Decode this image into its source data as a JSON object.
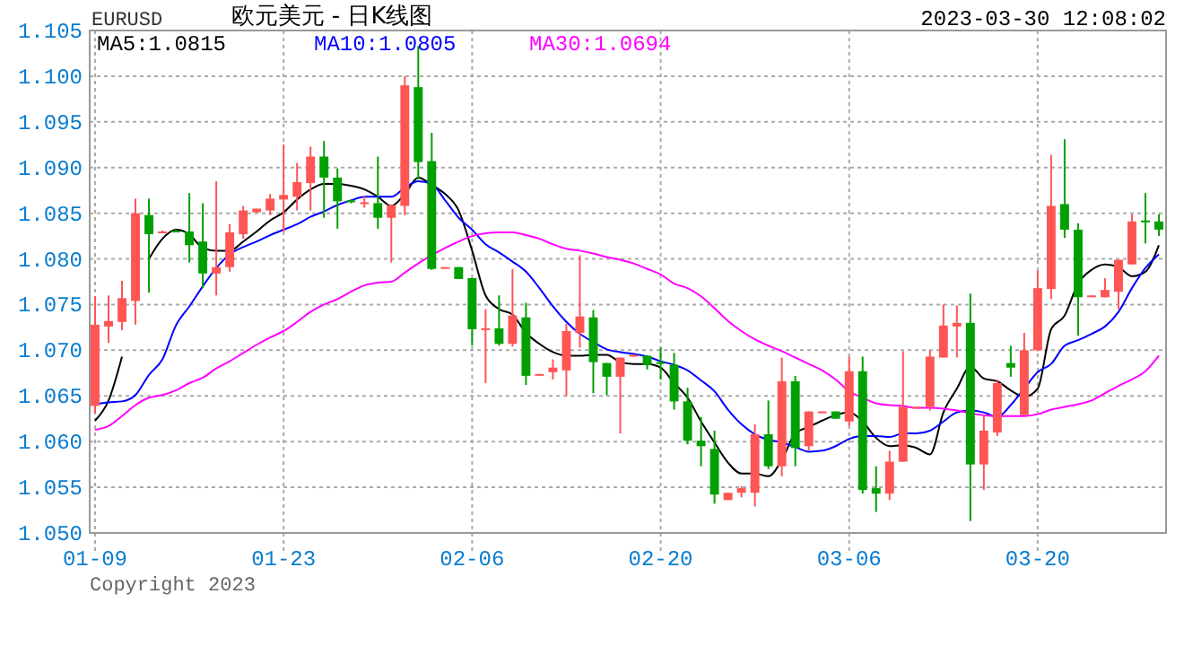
{
  "chart_data": {
    "type": "candlestick",
    "title": "欧元美元 - 日K线图",
    "annotations": [
      "EURUSD",
      "2023-03-30 12:08:02",
      "Copyright 2023"
    ],
    "categories": [
      "01-09",
      null,
      null,
      null,
      null,
      null,
      null,
      null,
      null,
      null,
      null,
      null,
      null,
      null,
      "01-23",
      null,
      null,
      null,
      null,
      null,
      null,
      null,
      null,
      null,
      null,
      null,
      null,
      null,
      "02-06",
      null,
      null,
      null,
      null,
      null,
      null,
      null,
      null,
      null,
      null,
      null,
      null,
      null,
      "02-20",
      null,
      null,
      null,
      null,
      null,
      null,
      null,
      null,
      null,
      null,
      null,
      null,
      null,
      "03-06",
      null,
      null,
      null,
      null,
      null,
      null,
      null,
      null,
      null,
      null,
      null,
      null,
      null,
      "03-20",
      null,
      null,
      null,
      null,
      null,
      null,
      null,
      null,
      null
    ],
    "ohlc": [
      [
        1.0639,
        1.0759,
        1.0631,
        1.0728
      ],
      [
        1.0726,
        1.076,
        1.0708,
        1.0732
      ],
      [
        1.0731,
        1.0776,
        1.0722,
        1.0757
      ],
      [
        1.0754,
        1.0866,
        1.0728,
        1.085
      ],
      [
        1.0848,
        1.0866,
        1.0763,
        1.0827
      ],
      [
        1.0829,
        1.0831,
        1.0828,
        1.083
      ],
      [
        1.0831,
        1.0832,
        1.0829,
        1.0829
      ],
      [
        1.083,
        1.0872,
        1.0796,
        1.0815
      ],
      [
        1.0819,
        1.0861,
        1.0768,
        1.0784
      ],
      [
        1.0784,
        1.0885,
        1.076,
        1.0791
      ],
      [
        1.0791,
        1.0838,
        1.0786,
        1.0829
      ],
      [
        1.0827,
        1.0858,
        1.0822,
        1.0853
      ],
      [
        1.0851,
        1.0855,
        1.0851,
        1.0855
      ],
      [
        1.0853,
        1.0871,
        1.0848,
        1.0866
      ],
      [
        1.0865,
        1.0925,
        1.083,
        1.087
      ],
      [
        1.0868,
        1.0905,
        1.0853,
        1.0884
      ],
      [
        1.0883,
        1.0923,
        1.0853,
        1.0912
      ],
      [
        1.0912,
        1.0929,
        1.0845,
        1.0889
      ],
      [
        1.0889,
        1.0899,
        1.0833,
        1.0863
      ],
      [
        1.0864,
        1.0865,
        1.0861,
        1.0862
      ],
      [
        1.0861,
        1.0869,
        1.0856,
        1.0862
      ],
      [
        1.0861,
        1.0912,
        1.0833,
        1.0845
      ],
      [
        1.0845,
        1.0859,
        1.0796,
        1.0859
      ],
      [
        1.0858,
        1.1,
        1.0848,
        1.099
      ],
      [
        1.0988,
        1.1033,
        1.0887,
        1.0906
      ],
      [
        1.0907,
        1.0938,
        1.0788,
        1.0789
      ],
      [
        1.079,
        1.0791,
        1.079,
        1.0791
      ],
      [
        1.0791,
        1.0791,
        1.0778,
        1.0778
      ],
      [
        1.0779,
        1.0779,
        1.0705,
        1.0723
      ],
      [
        1.0723,
        1.0745,
        1.0664,
        1.0724
      ],
      [
        1.0724,
        1.076,
        1.0705,
        1.0707
      ],
      [
        1.0707,
        1.0789,
        1.0704,
        1.0738
      ],
      [
        1.0736,
        1.0752,
        1.0662,
        1.0672
      ],
      [
        1.0673,
        1.0674,
        1.0673,
        1.0674
      ],
      [
        1.0676,
        1.069,
        1.0668,
        1.0681
      ],
      [
        1.0678,
        1.0729,
        1.065,
        1.0721
      ],
      [
        1.0719,
        1.0804,
        1.0703,
        1.0737
      ],
      [
        1.0736,
        1.0744,
        1.0653,
        1.0687
      ],
      [
        1.0686,
        1.0686,
        1.0651,
        1.0671
      ],
      [
        1.0671,
        1.0692,
        1.0609,
        1.0692
      ],
      [
        1.0693,
        1.0695,
        1.0693,
        1.0695
      ],
      [
        1.0694,
        1.0694,
        1.0679,
        1.0684
      ],
      [
        1.0687,
        1.0703,
        1.0668,
        1.0685
      ],
      [
        1.0684,
        1.0697,
        1.0635,
        1.0644
      ],
      [
        1.0644,
        1.0659,
        1.0597,
        1.0601
      ],
      [
        1.0601,
        1.0627,
        1.0573,
        1.0595
      ],
      [
        1.0592,
        1.0612,
        1.0532,
        1.0542
      ],
      [
        1.0536,
        1.0544,
        1.0536,
        1.0544
      ],
      [
        1.0544,
        1.0551,
        1.0539,
        1.0549
      ],
      [
        1.0544,
        1.0619,
        1.0529,
        1.0608
      ],
      [
        1.0608,
        1.0645,
        1.057,
        1.0573
      ],
      [
        1.0573,
        1.0692,
        1.0562,
        1.0666
      ],
      [
        1.0666,
        1.0672,
        1.0573,
        1.0593
      ],
      [
        1.0595,
        1.0633,
        1.059,
        1.0633
      ],
      [
        1.0632,
        1.0633,
        1.0632,
        1.0633
      ],
      [
        1.0633,
        1.0633,
        1.0625,
        1.0625
      ],
      [
        1.0622,
        1.0693,
        1.0617,
        1.0677
      ],
      [
        1.0677,
        1.0693,
        1.0543,
        1.0547
      ],
      [
        1.0549,
        1.0573,
        1.0523,
        1.0543
      ],
      [
        1.0543,
        1.059,
        1.0536,
        1.0578
      ],
      [
        1.0578,
        1.0699,
        1.0578,
        1.0638
      ],
      [
        1.0637,
        1.0638,
        1.0637,
        1.0638
      ],
      [
        1.0638,
        1.07,
        1.0634,
        1.0693
      ],
      [
        1.0692,
        1.075,
        1.0692,
        1.0727
      ],
      [
        1.0726,
        1.0749,
        1.0692,
        1.073
      ],
      [
        1.073,
        1.0762,
        1.0513,
        1.0575
      ],
      [
        1.0575,
        1.0629,
        1.0547,
        1.0612
      ],
      [
        1.061,
        1.0668,
        1.0606,
        1.0664
      ],
      [
        1.0686,
        1.0705,
        1.0671,
        1.0681
      ],
      [
        1.0629,
        1.0719,
        1.0629,
        1.07
      ],
      [
        1.07,
        1.0787,
        1.0699,
        1.0768
      ],
      [
        1.0767,
        1.0914,
        1.0756,
        1.0858
      ],
      [
        1.086,
        1.0931,
        1.0823,
        1.0832
      ],
      [
        1.0832,
        1.0839,
        1.0716,
        1.0758
      ],
      [
        1.0759,
        1.076,
        1.0759,
        1.076
      ],
      [
        1.0758,
        1.0779,
        1.0758,
        1.0766
      ],
      [
        1.0764,
        1.0799,
        1.0745,
        1.0799
      ],
      [
        1.0794,
        1.0849,
        1.0794,
        1.0841
      ],
      [
        1.0842,
        1.0872,
        1.0817,
        1.084
      ],
      [
        1.0841,
        1.0849,
        1.0825,
        1.0832
      ]
    ],
    "colors": [
      "#ff5555",
      "#ff5555",
      "#ff5555",
      "#ff5555",
      "#00a000",
      "#ff5555",
      "#00a000",
      "#00a000",
      "#00a000",
      "#ff5555",
      "#ff5555",
      "#ff5555",
      "#ff5555",
      "#ff5555",
      "#ff5555",
      "#ff5555",
      "#ff5555",
      "#00a000",
      "#00a000",
      "#00a000",
      "#ff5555",
      "#00a000",
      "#ff5555",
      "#ff5555",
      "#00a000",
      "#00a000",
      "#ff5555",
      "#00a000",
      "#00a000",
      "#ff5555",
      "#00a000",
      "#ff5555",
      "#00a000",
      "#ff5555",
      "#ff5555",
      "#ff5555",
      "#ff5555",
      "#00a000",
      "#00a000",
      "#ff5555",
      "#ff5555",
      "#00a000",
      "#00a000",
      "#00a000",
      "#00a000",
      "#00a000",
      "#00a000",
      "#ff5555",
      "#ff5555",
      "#ff5555",
      "#00a000",
      "#ff5555",
      "#00a000",
      "#ff5555",
      "#ff5555",
      "#00a000",
      "#ff5555",
      "#00a000",
      "#00a000",
      "#ff5555",
      "#ff5555",
      "#ff5555",
      "#ff5555",
      "#ff5555",
      "#ff5555",
      "#00a000",
      "#ff5555",
      "#ff5555",
      "#00a000",
      "#ff5555",
      "#ff5555",
      "#ff5555",
      "#00a000",
      "#00a000",
      "#ff5555",
      "#ff5555",
      "#ff5555",
      "#ff5555",
      "#00a000",
      "#00a000"
    ],
    "series": [
      {
        "type": "line",
        "name": "MA5:1.0815",
        "color": "#000000",
        "values": [
          1.0623,
          1.0645,
          1.0693,
          null,
          1.08,
          1.0822,
          1.0832,
          1.0827,
          1.0812,
          1.0809,
          1.0809,
          1.0819,
          1.083,
          1.0842,
          1.0851,
          1.0865,
          1.0876,
          1.0882,
          1.0882,
          1.088,
          1.0876,
          1.0868,
          1.0858,
          1.0871,
          1.0889,
          1.0881,
          1.0871,
          1.0853,
          1.0809,
          1.076,
          1.0745,
          1.0739,
          1.0719,
          1.0707,
          1.0698,
          1.0694,
          1.0694,
          1.0695,
          1.0695,
          1.0687,
          1.0685,
          1.0685,
          1.0681,
          1.0664,
          1.0648,
          1.0622,
          1.0599,
          1.0577,
          1.0565,
          1.0565,
          1.0562,
          1.058,
          1.0609,
          1.0616,
          1.0623,
          1.0629,
          1.0632,
          1.0622,
          1.0604,
          1.0595,
          1.0596,
          1.0593,
          1.0586,
          1.0632,
          1.0658,
          1.0682,
          1.0669,
          1.0666,
          1.0656,
          1.0649,
          1.0658,
          1.0723,
          1.0738,
          1.0773,
          1.0788,
          1.0794,
          1.0791,
          1.0781,
          1.0786,
          1.0815
        ]
      },
      {
        "type": "line",
        "name": "MA10:1.0805",
        "color": "#0000ff",
        "values": [
          1.0641,
          1.0643,
          1.0644,
          1.0651,
          1.0673,
          1.069,
          1.0727,
          1.0748,
          1.077,
          1.079,
          1.0805,
          1.0813,
          1.0819,
          1.0826,
          1.0832,
          1.0838,
          1.0846,
          1.0852,
          1.0859,
          1.0864,
          1.0868,
          1.0868,
          1.0868,
          1.0878,
          1.0885,
          1.0882,
          1.0864,
          1.0845,
          1.0832,
          1.0816,
          1.0807,
          1.0797,
          1.0786,
          1.0768,
          1.0748,
          1.0731,
          1.0718,
          1.0709,
          1.0701,
          1.0698,
          1.0696,
          1.0693,
          1.0688,
          1.0684,
          1.0678,
          1.0667,
          1.0655,
          1.0635,
          1.0619,
          1.0608,
          1.0602,
          1.0599,
          1.0594,
          1.0589,
          1.059,
          1.0595,
          1.0603,
          1.0606,
          1.0606,
          1.0605,
          1.0609,
          1.0609,
          1.0612,
          1.0622,
          1.0632,
          1.0634,
          1.0632,
          1.0627,
          1.064,
          1.0658,
          1.0676,
          1.0685,
          1.0705,
          1.0711,
          1.0718,
          1.0726,
          1.0742,
          1.0768,
          1.079,
          1.0805
        ]
      },
      {
        "type": "line",
        "name": "MA30:1.0694",
        "color": "#ff00ff",
        "values": [
          1.0613,
          1.0617,
          1.0628,
          1.064,
          1.0648,
          1.0651,
          1.0656,
          1.0664,
          1.067,
          1.068,
          1.0688,
          1.0697,
          1.0706,
          1.0714,
          1.0721,
          1.0731,
          1.0742,
          1.075,
          1.0756,
          1.0764,
          1.0771,
          1.0774,
          1.0775,
          1.0785,
          1.0795,
          1.0804,
          1.0812,
          1.0819,
          1.0825,
          1.0828,
          1.0829,
          1.0829,
          1.0826,
          1.0822,
          1.0816,
          1.0811,
          1.0809,
          1.0806,
          1.0802,
          1.0799,
          1.0795,
          1.0789,
          1.0783,
          1.0773,
          1.0768,
          1.0759,
          1.0746,
          1.0732,
          1.0721,
          1.0712,
          1.0705,
          1.0699,
          1.0692,
          1.0685,
          1.0678,
          1.0668,
          1.0655,
          1.0648,
          1.0642,
          1.064,
          1.0639,
          1.0637,
          1.0637,
          1.0636,
          1.0634,
          1.0631,
          1.0629,
          1.0628,
          1.0628,
          1.0628,
          1.063,
          1.0635,
          1.0638,
          1.0641,
          1.0645,
          1.0653,
          1.0661,
          1.0668,
          1.0677,
          1.0694
        ]
      }
    ],
    "ylim": [
      1.05,
      1.105
    ],
    "yticks": [
      {
        "value": 1.05,
        "label": "1.050"
      },
      {
        "value": 1.055,
        "label": "1.055"
      },
      {
        "value": 1.06,
        "label": "1.060"
      },
      {
        "value": 1.065,
        "label": "1.065"
      },
      {
        "value": 1.07,
        "label": "1.070"
      },
      {
        "value": 1.075,
        "label": "1.075"
      },
      {
        "value": 1.08,
        "label": "1.080"
      },
      {
        "value": 1.085,
        "label": "1.085"
      },
      {
        "value": 1.09,
        "label": "1.090"
      },
      {
        "value": 1.095,
        "label": "1.095"
      },
      {
        "value": 1.1,
        "label": "1.100"
      },
      {
        "value": 1.105,
        "label": "1.105"
      }
    ],
    "grid": true,
    "legend": "top"
  }
}
